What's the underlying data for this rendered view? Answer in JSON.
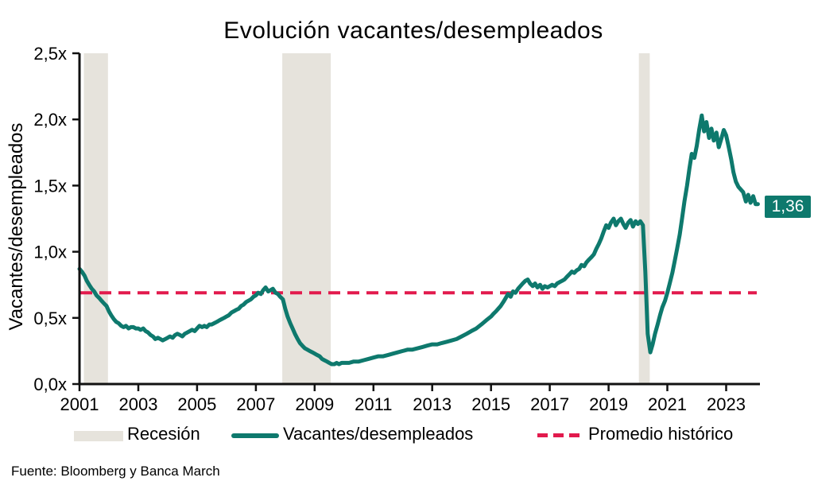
{
  "title": "Evolución vacantes/desempleados",
  "y_axis_label": "Vacantes/desempleados",
  "source": "Fuente: Bloomberg y Banca March",
  "end_label": "1,36",
  "colors": {
    "series": "#0e796d",
    "average": "#e21a4d",
    "recession_band": "#e6e3dc",
    "axis": "#111111",
    "text": "#000000",
    "badge_bg": "#0e796d",
    "badge_text": "#ffffff"
  },
  "legend": {
    "items": [
      {
        "label": "Recesión",
        "swatch": "band"
      },
      {
        "label": "Vacantes/desempleados",
        "swatch": "line"
      },
      {
        "label": "Promedio histórico",
        "swatch": "dashed"
      }
    ]
  },
  "chart_data": {
    "type": "line",
    "title": "Evolución vacantes/desempleados",
    "ylabel": "Vacantes/desempleados",
    "xlim": [
      2001.0,
      2024.15
    ],
    "ylim": [
      0,
      2.5
    ],
    "grid": false,
    "legend_position": "bottom",
    "x_tick_values": [
      2001,
      2003,
      2005,
      2007,
      2009,
      2011,
      2013,
      2015,
      2017,
      2019,
      2021,
      2023
    ],
    "x_tick_labels": [
      "2001",
      "2003",
      "2005",
      "2007",
      "2009",
      "2011",
      "2013",
      "2015",
      "2017",
      "2019",
      "2021",
      "2023"
    ],
    "y_tick_values": [
      0,
      0.5,
      1.0,
      1.5,
      2.0,
      2.5
    ],
    "y_tick_labels": [
      "0,0x",
      "0,5x",
      "1,0x",
      "1,5x",
      "2,0x",
      "2,5x"
    ],
    "average_line_value": 0.69,
    "average_line_label": "Promedio histórico",
    "last_value": 1.36,
    "last_value_label": "1,36",
    "recessions": [
      [
        2001.15,
        2001.97
      ],
      [
        2007.9,
        2009.55
      ],
      [
        2020.03,
        2020.4
      ]
    ],
    "series": [
      {
        "name": "Vacantes/desempleados",
        "points": [
          [
            2001.0,
            0.87
          ],
          [
            2001.08,
            0.85
          ],
          [
            2001.17,
            0.82
          ],
          [
            2001.25,
            0.78
          ],
          [
            2001.33,
            0.75
          ],
          [
            2001.42,
            0.72
          ],
          [
            2001.5,
            0.7
          ],
          [
            2001.58,
            0.67
          ],
          [
            2001.67,
            0.65
          ],
          [
            2001.75,
            0.63
          ],
          [
            2001.83,
            0.61
          ],
          [
            2001.92,
            0.59
          ],
          [
            2002.0,
            0.55
          ],
          [
            2002.08,
            0.52
          ],
          [
            2002.17,
            0.49
          ],
          [
            2002.25,
            0.47
          ],
          [
            2002.33,
            0.46
          ],
          [
            2002.42,
            0.44
          ],
          [
            2002.5,
            0.43
          ],
          [
            2002.58,
            0.44
          ],
          [
            2002.67,
            0.42
          ],
          [
            2002.75,
            0.43
          ],
          [
            2002.83,
            0.43
          ],
          [
            2002.92,
            0.42
          ],
          [
            2003.0,
            0.42
          ],
          [
            2003.08,
            0.41
          ],
          [
            2003.17,
            0.42
          ],
          [
            2003.25,
            0.4
          ],
          [
            2003.33,
            0.39
          ],
          [
            2003.42,
            0.37
          ],
          [
            2003.5,
            0.36
          ],
          [
            2003.58,
            0.34
          ],
          [
            2003.67,
            0.35
          ],
          [
            2003.75,
            0.34
          ],
          [
            2003.83,
            0.33
          ],
          [
            2003.92,
            0.34
          ],
          [
            2004.0,
            0.35
          ],
          [
            2004.08,
            0.36
          ],
          [
            2004.17,
            0.35
          ],
          [
            2004.25,
            0.37
          ],
          [
            2004.33,
            0.38
          ],
          [
            2004.42,
            0.37
          ],
          [
            2004.5,
            0.36
          ],
          [
            2004.58,
            0.38
          ],
          [
            2004.67,
            0.39
          ],
          [
            2004.75,
            0.4
          ],
          [
            2004.83,
            0.41
          ],
          [
            2004.92,
            0.4
          ],
          [
            2005.0,
            0.42
          ],
          [
            2005.08,
            0.44
          ],
          [
            2005.17,
            0.43
          ],
          [
            2005.25,
            0.44
          ],
          [
            2005.33,
            0.43
          ],
          [
            2005.42,
            0.45
          ],
          [
            2005.5,
            0.45
          ],
          [
            2005.58,
            0.46
          ],
          [
            2005.67,
            0.47
          ],
          [
            2005.75,
            0.48
          ],
          [
            2005.83,
            0.49
          ],
          [
            2005.92,
            0.5
          ],
          [
            2006.0,
            0.51
          ],
          [
            2006.08,
            0.52
          ],
          [
            2006.17,
            0.54
          ],
          [
            2006.25,
            0.55
          ],
          [
            2006.33,
            0.56
          ],
          [
            2006.42,
            0.57
          ],
          [
            2006.5,
            0.59
          ],
          [
            2006.58,
            0.6
          ],
          [
            2006.67,
            0.62
          ],
          [
            2006.75,
            0.63
          ],
          [
            2006.83,
            0.64
          ],
          [
            2006.92,
            0.66
          ],
          [
            2007.0,
            0.67
          ],
          [
            2007.08,
            0.69
          ],
          [
            2007.17,
            0.68
          ],
          [
            2007.25,
            0.71
          ],
          [
            2007.33,
            0.73
          ],
          [
            2007.42,
            0.7
          ],
          [
            2007.5,
            0.71
          ],
          [
            2007.58,
            0.72
          ],
          [
            2007.67,
            0.69
          ],
          [
            2007.75,
            0.68
          ],
          [
            2007.83,
            0.66
          ],
          [
            2007.92,
            0.64
          ],
          [
            2008.0,
            0.57
          ],
          [
            2008.08,
            0.51
          ],
          [
            2008.17,
            0.46
          ],
          [
            2008.25,
            0.42
          ],
          [
            2008.33,
            0.38
          ],
          [
            2008.42,
            0.34
          ],
          [
            2008.5,
            0.31
          ],
          [
            2008.58,
            0.29
          ],
          [
            2008.67,
            0.27
          ],
          [
            2008.75,
            0.26
          ],
          [
            2008.83,
            0.25
          ],
          [
            2008.92,
            0.24
          ],
          [
            2009.0,
            0.23
          ],
          [
            2009.08,
            0.22
          ],
          [
            2009.17,
            0.21
          ],
          [
            2009.25,
            0.19
          ],
          [
            2009.33,
            0.18
          ],
          [
            2009.42,
            0.17
          ],
          [
            2009.5,
            0.16
          ],
          [
            2009.58,
            0.15
          ],
          [
            2009.67,
            0.15
          ],
          [
            2009.75,
            0.16
          ],
          [
            2009.83,
            0.15
          ],
          [
            2009.92,
            0.16
          ],
          [
            2010.0,
            0.16
          ],
          [
            2010.17,
            0.16
          ],
          [
            2010.33,
            0.17
          ],
          [
            2010.5,
            0.17
          ],
          [
            2010.67,
            0.18
          ],
          [
            2010.83,
            0.19
          ],
          [
            2011.0,
            0.2
          ],
          [
            2011.17,
            0.21
          ],
          [
            2011.33,
            0.21
          ],
          [
            2011.5,
            0.22
          ],
          [
            2011.67,
            0.23
          ],
          [
            2011.83,
            0.24
          ],
          [
            2012.0,
            0.25
          ],
          [
            2012.17,
            0.26
          ],
          [
            2012.33,
            0.26
          ],
          [
            2012.5,
            0.27
          ],
          [
            2012.67,
            0.28
          ],
          [
            2012.83,
            0.29
          ],
          [
            2013.0,
            0.3
          ],
          [
            2013.17,
            0.3
          ],
          [
            2013.33,
            0.31
          ],
          [
            2013.5,
            0.32
          ],
          [
            2013.67,
            0.33
          ],
          [
            2013.83,
            0.34
          ],
          [
            2014.0,
            0.36
          ],
          [
            2014.17,
            0.38
          ],
          [
            2014.33,
            0.4
          ],
          [
            2014.5,
            0.42
          ],
          [
            2014.67,
            0.45
          ],
          [
            2014.83,
            0.48
          ],
          [
            2015.0,
            0.51
          ],
          [
            2015.08,
            0.53
          ],
          [
            2015.17,
            0.55
          ],
          [
            2015.25,
            0.57
          ],
          [
            2015.33,
            0.59
          ],
          [
            2015.42,
            0.62
          ],
          [
            2015.5,
            0.65
          ],
          [
            2015.58,
            0.68
          ],
          [
            2015.67,
            0.66
          ],
          [
            2015.75,
            0.7
          ],
          [
            2015.83,
            0.69
          ],
          [
            2015.92,
            0.72
          ],
          [
            2016.0,
            0.74
          ],
          [
            2016.08,
            0.76
          ],
          [
            2016.17,
            0.78
          ],
          [
            2016.25,
            0.79
          ],
          [
            2016.33,
            0.76
          ],
          [
            2016.42,
            0.74
          ],
          [
            2016.5,
            0.76
          ],
          [
            2016.58,
            0.73
          ],
          [
            2016.67,
            0.75
          ],
          [
            2016.75,
            0.72
          ],
          [
            2016.83,
            0.74
          ],
          [
            2016.92,
            0.73
          ],
          [
            2017.0,
            0.74
          ],
          [
            2017.08,
            0.75
          ],
          [
            2017.17,
            0.74
          ],
          [
            2017.25,
            0.76
          ],
          [
            2017.33,
            0.77
          ],
          [
            2017.42,
            0.78
          ],
          [
            2017.5,
            0.79
          ],
          [
            2017.58,
            0.81
          ],
          [
            2017.67,
            0.83
          ],
          [
            2017.75,
            0.85
          ],
          [
            2017.83,
            0.84
          ],
          [
            2017.92,
            0.86
          ],
          [
            2018.0,
            0.87
          ],
          [
            2018.08,
            0.9
          ],
          [
            2018.17,
            0.89
          ],
          [
            2018.25,
            0.92
          ],
          [
            2018.33,
            0.94
          ],
          [
            2018.42,
            0.96
          ],
          [
            2018.5,
            0.98
          ],
          [
            2018.58,
            1.02
          ],
          [
            2018.67,
            1.06
          ],
          [
            2018.75,
            1.1
          ],
          [
            2018.83,
            1.15
          ],
          [
            2018.92,
            1.2
          ],
          [
            2019.0,
            1.18
          ],
          [
            2019.08,
            1.22
          ],
          [
            2019.17,
            1.25
          ],
          [
            2019.25,
            1.2
          ],
          [
            2019.33,
            1.23
          ],
          [
            2019.42,
            1.25
          ],
          [
            2019.5,
            1.21
          ],
          [
            2019.58,
            1.18
          ],
          [
            2019.67,
            1.22
          ],
          [
            2019.75,
            1.24
          ],
          [
            2019.83,
            1.19
          ],
          [
            2019.92,
            1.23
          ],
          [
            2020.0,
            1.21
          ],
          [
            2020.08,
            1.23
          ],
          [
            2020.17,
            1.2
          ],
          [
            2020.25,
            0.85
          ],
          [
            2020.33,
            0.38
          ],
          [
            2020.42,
            0.24
          ],
          [
            2020.5,
            0.3
          ],
          [
            2020.58,
            0.38
          ],
          [
            2020.67,
            0.45
          ],
          [
            2020.75,
            0.52
          ],
          [
            2020.83,
            0.58
          ],
          [
            2020.92,
            0.63
          ],
          [
            2021.0,
            0.69
          ],
          [
            2021.08,
            0.76
          ],
          [
            2021.17,
            0.84
          ],
          [
            2021.25,
            0.93
          ],
          [
            2021.33,
            1.02
          ],
          [
            2021.42,
            1.13
          ],
          [
            2021.5,
            1.25
          ],
          [
            2021.58,
            1.38
          ],
          [
            2021.67,
            1.5
          ],
          [
            2021.75,
            1.63
          ],
          [
            2021.83,
            1.74
          ],
          [
            2021.92,
            1.71
          ],
          [
            2022.0,
            1.8
          ],
          [
            2022.08,
            1.92
          ],
          [
            2022.17,
            2.03
          ],
          [
            2022.25,
            1.91
          ],
          [
            2022.33,
            1.98
          ],
          [
            2022.42,
            1.86
          ],
          [
            2022.5,
            1.93
          ],
          [
            2022.58,
            1.84
          ],
          [
            2022.67,
            1.9
          ],
          [
            2022.75,
            1.79
          ],
          [
            2022.83,
            1.85
          ],
          [
            2022.92,
            1.92
          ],
          [
            2023.0,
            1.88
          ],
          [
            2023.08,
            1.8
          ],
          [
            2023.17,
            1.7
          ],
          [
            2023.25,
            1.6
          ],
          [
            2023.33,
            1.53
          ],
          [
            2023.42,
            1.49
          ],
          [
            2023.5,
            1.47
          ],
          [
            2023.58,
            1.45
          ],
          [
            2023.67,
            1.38
          ],
          [
            2023.75,
            1.43
          ],
          [
            2023.83,
            1.37
          ],
          [
            2023.92,
            1.42
          ],
          [
            2024.0,
            1.36
          ],
          [
            2024.08,
            1.36
          ]
        ]
      }
    ]
  }
}
